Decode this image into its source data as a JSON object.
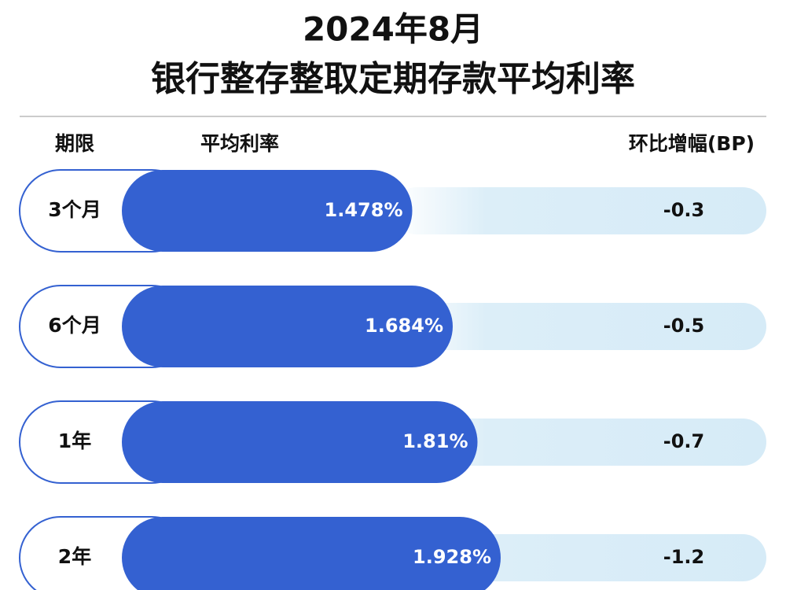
{
  "chart_data": {
    "type": "bar",
    "title": "2024年8月",
    "subtitle": "银行整存整取定期存款平均利率",
    "category_header": "期限",
    "categories": [
      "3个月",
      "6个月",
      "1年",
      "2年"
    ],
    "series": [
      {
        "name": "平均利率",
        "color": "#3461d1",
        "values": [
          1.478,
          1.684,
          1.81,
          1.928
        ],
        "value_labels": [
          "1.478%",
          "1.684%",
          "1.81%",
          "1.928%"
        ]
      },
      {
        "name": "环比增幅(BP)",
        "values": [
          -0.3,
          -0.5,
          -0.7,
          -1.2
        ]
      }
    ]
  }
}
